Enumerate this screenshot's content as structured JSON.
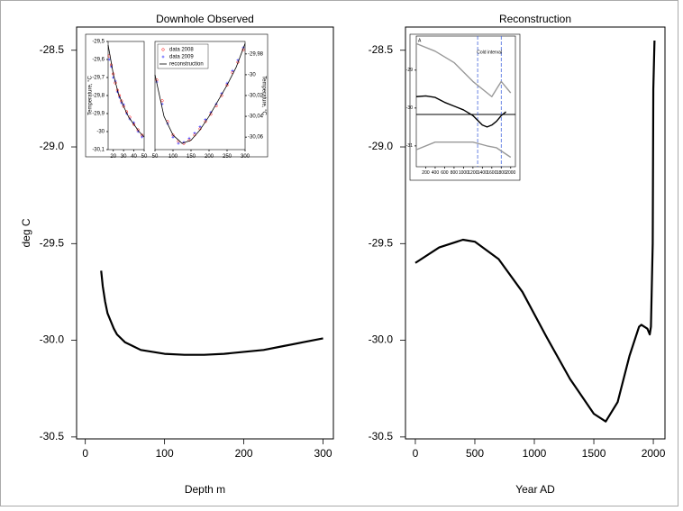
{
  "chart_data": [
    {
      "type": "line",
      "title": "Downhole Observed",
      "xlabel": "Depth m",
      "ylabel": "deg C",
      "xlim": [
        -11,
        313
      ],
      "xticks": [
        0,
        100,
        200,
        300
      ],
      "ylim": [
        -30.51,
        -28.38
      ],
      "yticks": [
        -28.5,
        {
          "value": -29,
          "label": "-29.0"
        },
        -29.5,
        {
          "value": -30,
          "label": "-30.0"
        },
        -30.5
      ],
      "series": [
        {
          "color": "#000000",
          "x": [
            20,
            22,
            25,
            28,
            32,
            36,
            40,
            50,
            60,
            70,
            85,
            100,
            125,
            150,
            175,
            200,
            225,
            250,
            275,
            300
          ],
          "values": [
            -29.64,
            -29.72,
            -29.8,
            -29.86,
            -29.9,
            -29.94,
            -29.97,
            -30.01,
            -30.03,
            -30.05,
            -30.06,
            -30.07,
            -30.075,
            -30.075,
            -30.07,
            -30.06,
            -30.05,
            -30.03,
            -30.01,
            -29.99
          ]
        }
      ]
    },
    {
      "type": "line",
      "title": "Reconstruction",
      "xlabel": "Year AD",
      "xlim": [
        -83,
        2098
      ],
      "xticks": [
        0,
        500,
        1000,
        1500,
        2000
      ],
      "ylim": [
        -30.51,
        -28.38
      ],
      "yticks": [
        -28.5,
        {
          "value": -29,
          "label": "-29.0"
        },
        -29.5,
        {
          "value": -30,
          "label": "-30.0"
        },
        -30.5
      ],
      "series": [
        {
          "color": "#000000",
          "x": [
            0,
            200,
            400,
            500,
            700,
            900,
            1100,
            1300,
            1500,
            1600,
            1700,
            1800,
            1880,
            1900,
            1950,
            1970,
            1980,
            1995,
            2000,
            2010
          ],
          "values": [
            -29.6,
            -29.52,
            -29.48,
            -29.49,
            -29.58,
            -29.75,
            -29.98,
            -30.2,
            -30.38,
            -30.42,
            -30.32,
            -30.08,
            -29.93,
            -29.92,
            -29.94,
            -29.97,
            -29.93,
            -29.5,
            -28.7,
            -28.45
          ]
        }
      ]
    },
    {
      "type": "scatter",
      "ylabel": "Temperature, °C",
      "xlim": [
        15,
        50
      ],
      "xticks": [
        20,
        30,
        40,
        50
      ],
      "ylim": [
        -30.1,
        -29.5
      ],
      "yticks": [
        {
          "value": -29.5,
          "label": "-29,5"
        },
        {
          "value": -29.6,
          "label": "-29,6"
        },
        {
          "value": -29.7,
          "label": "-29,7"
        },
        {
          "value": -29.8,
          "label": "-29,8"
        },
        {
          "value": -29.9,
          "label": "-29,9"
        },
        -30,
        {
          "value": -30.1,
          "label": "-30,1"
        }
      ],
      "series": [
        {
          "color": "#ff0000",
          "marker": "o",
          "x": [
            16,
            18,
            20,
            22,
            24,
            26,
            28,
            30,
            33,
            36,
            40,
            44,
            48
          ],
          "values": [
            -29.58,
            -29.63,
            -29.68,
            -29.73,
            -29.77,
            -29.8,
            -29.83,
            -29.86,
            -29.89,
            -29.92,
            -29.96,
            -29.99,
            -30.02
          ]
        },
        {
          "color": "#0000ff",
          "marker": "+",
          "x": [
            16,
            18,
            20,
            22,
            24,
            26,
            28,
            30,
            33,
            36,
            40,
            44,
            48
          ],
          "values": [
            -29.6,
            -29.64,
            -29.7,
            -29.72,
            -29.78,
            -29.81,
            -29.84,
            -29.85,
            -29.9,
            -29.93,
            -29.95,
            -30,
            -30.03
          ]
        },
        {
          "color": "#000000",
          "x": [
            15,
            20,
            25,
            30,
            35,
            40,
            45,
            50
          ],
          "values": [
            -29.52,
            -29.68,
            -29.79,
            -29.86,
            -29.92,
            -29.96,
            -30,
            -30.03
          ]
        }
      ]
    },
    {
      "type": "scatter",
      "y2label": "Temperature, °C",
      "legend": "upper left",
      "xlim": [
        50,
        300
      ],
      "xticks": [
        50,
        100,
        150,
        200,
        250,
        300
      ],
      "y2lim": [
        -30.072,
        -29.968
      ],
      "y2ticks": [
        {
          "value": -29.98,
          "label": "-29,98"
        },
        -30,
        {
          "value": -30.02,
          "label": "-30,02"
        },
        {
          "value": -30.04,
          "label": "-30,04"
        },
        {
          "value": -30.06,
          "label": "-30,06"
        }
      ],
      "series": [
        {
          "name": "data 2008",
          "color": "#ff0000",
          "marker": "o",
          "axis": "y2",
          "x": [
            55,
            70,
            85,
            100,
            115,
            130,
            145,
            160,
            175,
            190,
            205,
            220,
            235,
            250,
            265,
            280,
            295
          ],
          "values": [
            -30.005,
            -30.025,
            -30.045,
            -30.058,
            -30.064,
            -30.066,
            -30.063,
            -30.058,
            -30.052,
            -30.045,
            -30.038,
            -30.03,
            -30.02,
            -30.01,
            -29.998,
            -29.988,
            -29.976
          ]
        },
        {
          "name": "data 2009",
          "color": "#0000ff",
          "marker": "+",
          "axis": "y2",
          "x": [
            55,
            70,
            85,
            100,
            115,
            130,
            145,
            160,
            175,
            190,
            205,
            220,
            235,
            250,
            265,
            280,
            295
          ],
          "values": [
            -30.007,
            -30.028,
            -30.047,
            -30.06,
            -30.066,
            -30.065,
            -30.061,
            -30.056,
            -30.05,
            -30.043,
            -30.036,
            -30.028,
            -30.018,
            -30.008,
            -29.996,
            -29.986,
            -29.974
          ]
        },
        {
          "name": "reconstruction",
          "color": "#000000",
          "axis": "y2",
          "x": [
            50,
            75,
            100,
            125,
            150,
            175,
            200,
            225,
            250,
            275,
            300
          ],
          "values": [
            -30,
            -30.04,
            -30.058,
            -30.066,
            -30.063,
            -30.053,
            -30.04,
            -30.025,
            -30.01,
            -29.993,
            -29.97
          ]
        }
      ]
    },
    {
      "type": "line",
      "annotations": [
        "A",
        "Cold interval"
      ],
      "xlim": [
        0,
        2100
      ],
      "xticks": [
        200,
        400,
        600,
        800,
        1000,
        1200,
        1400,
        1600,
        1800,
        2000
      ],
      "ylim": [
        -31.55,
        -28.1
      ],
      "yticks": [
        -29,
        -30,
        -31
      ],
      "hline": -30.17,
      "vlines": [
        1300,
        1800
      ],
      "vline_color": "#4466dd",
      "series": [
        {
          "color": "#999999",
          "x": [
            0,
            400,
            800,
            1200,
            1600,
            1800,
            2000
          ],
          "values": [
            -28.3,
            -28.5,
            -28.8,
            -29.3,
            -29.7,
            -29.3,
            -29.6
          ]
        },
        {
          "color": "#999999",
          "x": [
            0,
            400,
            800,
            1200,
            1500,
            1700,
            2000
          ],
          "values": [
            -31.1,
            -30.9,
            -30.9,
            -30.9,
            -31,
            -31.05,
            -31.3
          ]
        },
        {
          "color": "#000000",
          "x": [
            0,
            200,
            400,
            600,
            800,
            1000,
            1200,
            1400,
            1500,
            1600,
            1700,
            1800,
            1900
          ],
          "values": [
            -29.7,
            -29.68,
            -29.72,
            -29.85,
            -29.95,
            -30.05,
            -30.2,
            -30.45,
            -30.5,
            -30.45,
            -30.35,
            -30.2,
            -30.1
          ]
        }
      ]
    }
  ]
}
